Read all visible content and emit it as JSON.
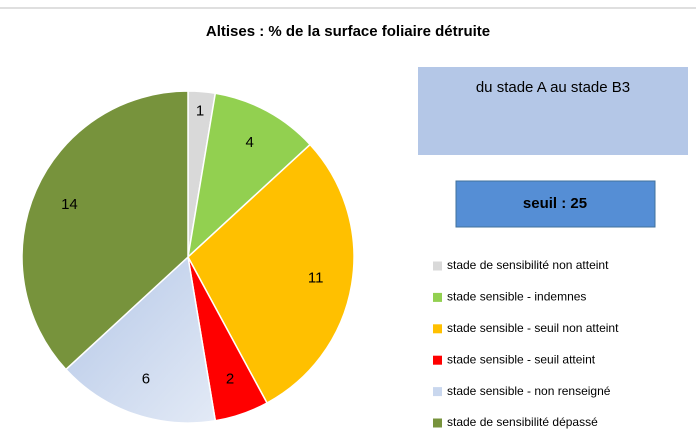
{
  "chart_data": {
    "type": "pie",
    "title": "Altises : % de la surface foliaire détruite",
    "annotations": [
      "du stade A au stade B3",
      "seuil : 25"
    ],
    "categories": [
      "stade de sensibilité non atteint",
      "stade sensible - indemnes",
      "stade sensible - seuil non atteint",
      "stade sensible - seuil atteint",
      "stade sensible - non renseigné",
      "stade de sensibilité dépassé"
    ],
    "values": [
      1,
      4,
      11,
      2,
      6,
      14
    ],
    "colors": [
      "#d9d9d9",
      "#92d050",
      "#ffc000",
      "#ff0000",
      "#c9d7ee",
      "#77933c"
    ],
    "legend": "right"
  }
}
